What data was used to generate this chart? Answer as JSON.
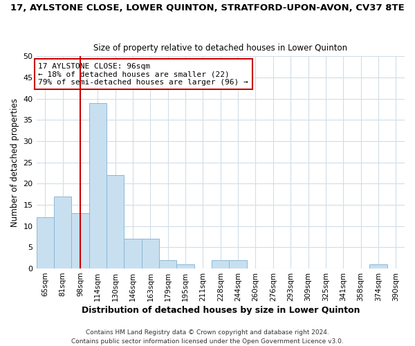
{
  "title": "17, AYLSTONE CLOSE, LOWER QUINTON, STRATFORD-UPON-AVON, CV37 8TE",
  "subtitle": "Size of property relative to detached houses in Lower Quinton",
  "xlabel": "Distribution of detached houses by size in Lower Quinton",
  "ylabel": "Number of detached properties",
  "bin_labels": [
    "65sqm",
    "81sqm",
    "98sqm",
    "114sqm",
    "130sqm",
    "146sqm",
    "163sqm",
    "179sqm",
    "195sqm",
    "211sqm",
    "228sqm",
    "244sqm",
    "260sqm",
    "276sqm",
    "293sqm",
    "309sqm",
    "325sqm",
    "341sqm",
    "358sqm",
    "374sqm",
    "390sqm"
  ],
  "bar_heights": [
    12,
    17,
    13,
    39,
    22,
    7,
    7,
    2,
    1,
    0,
    2,
    2,
    0,
    0,
    0,
    0,
    0,
    0,
    0,
    1,
    0
  ],
  "bar_color": "#c8dff0",
  "bar_edge_color": "#8ab8d8",
  "ylim": [
    0,
    50
  ],
  "yticks": [
    0,
    5,
    10,
    15,
    20,
    25,
    30,
    35,
    40,
    45,
    50
  ],
  "vline_x_idx": 2,
  "vline_color": "#cc0000",
  "annotation_text": "17 AYLSTONE CLOSE: 96sqm\n← 18% of detached houses are smaller (22)\n79% of semi-detached houses are larger (96) →",
  "annotation_box_color": "#ffffff",
  "annotation_box_edge": "#cc0000",
  "bg_color": "#ffffff",
  "grid_color": "#d0dde8",
  "footer1": "Contains HM Land Registry data © Crown copyright and database right 2024.",
  "footer2": "Contains public sector information licensed under the Open Government Licence v3.0."
}
